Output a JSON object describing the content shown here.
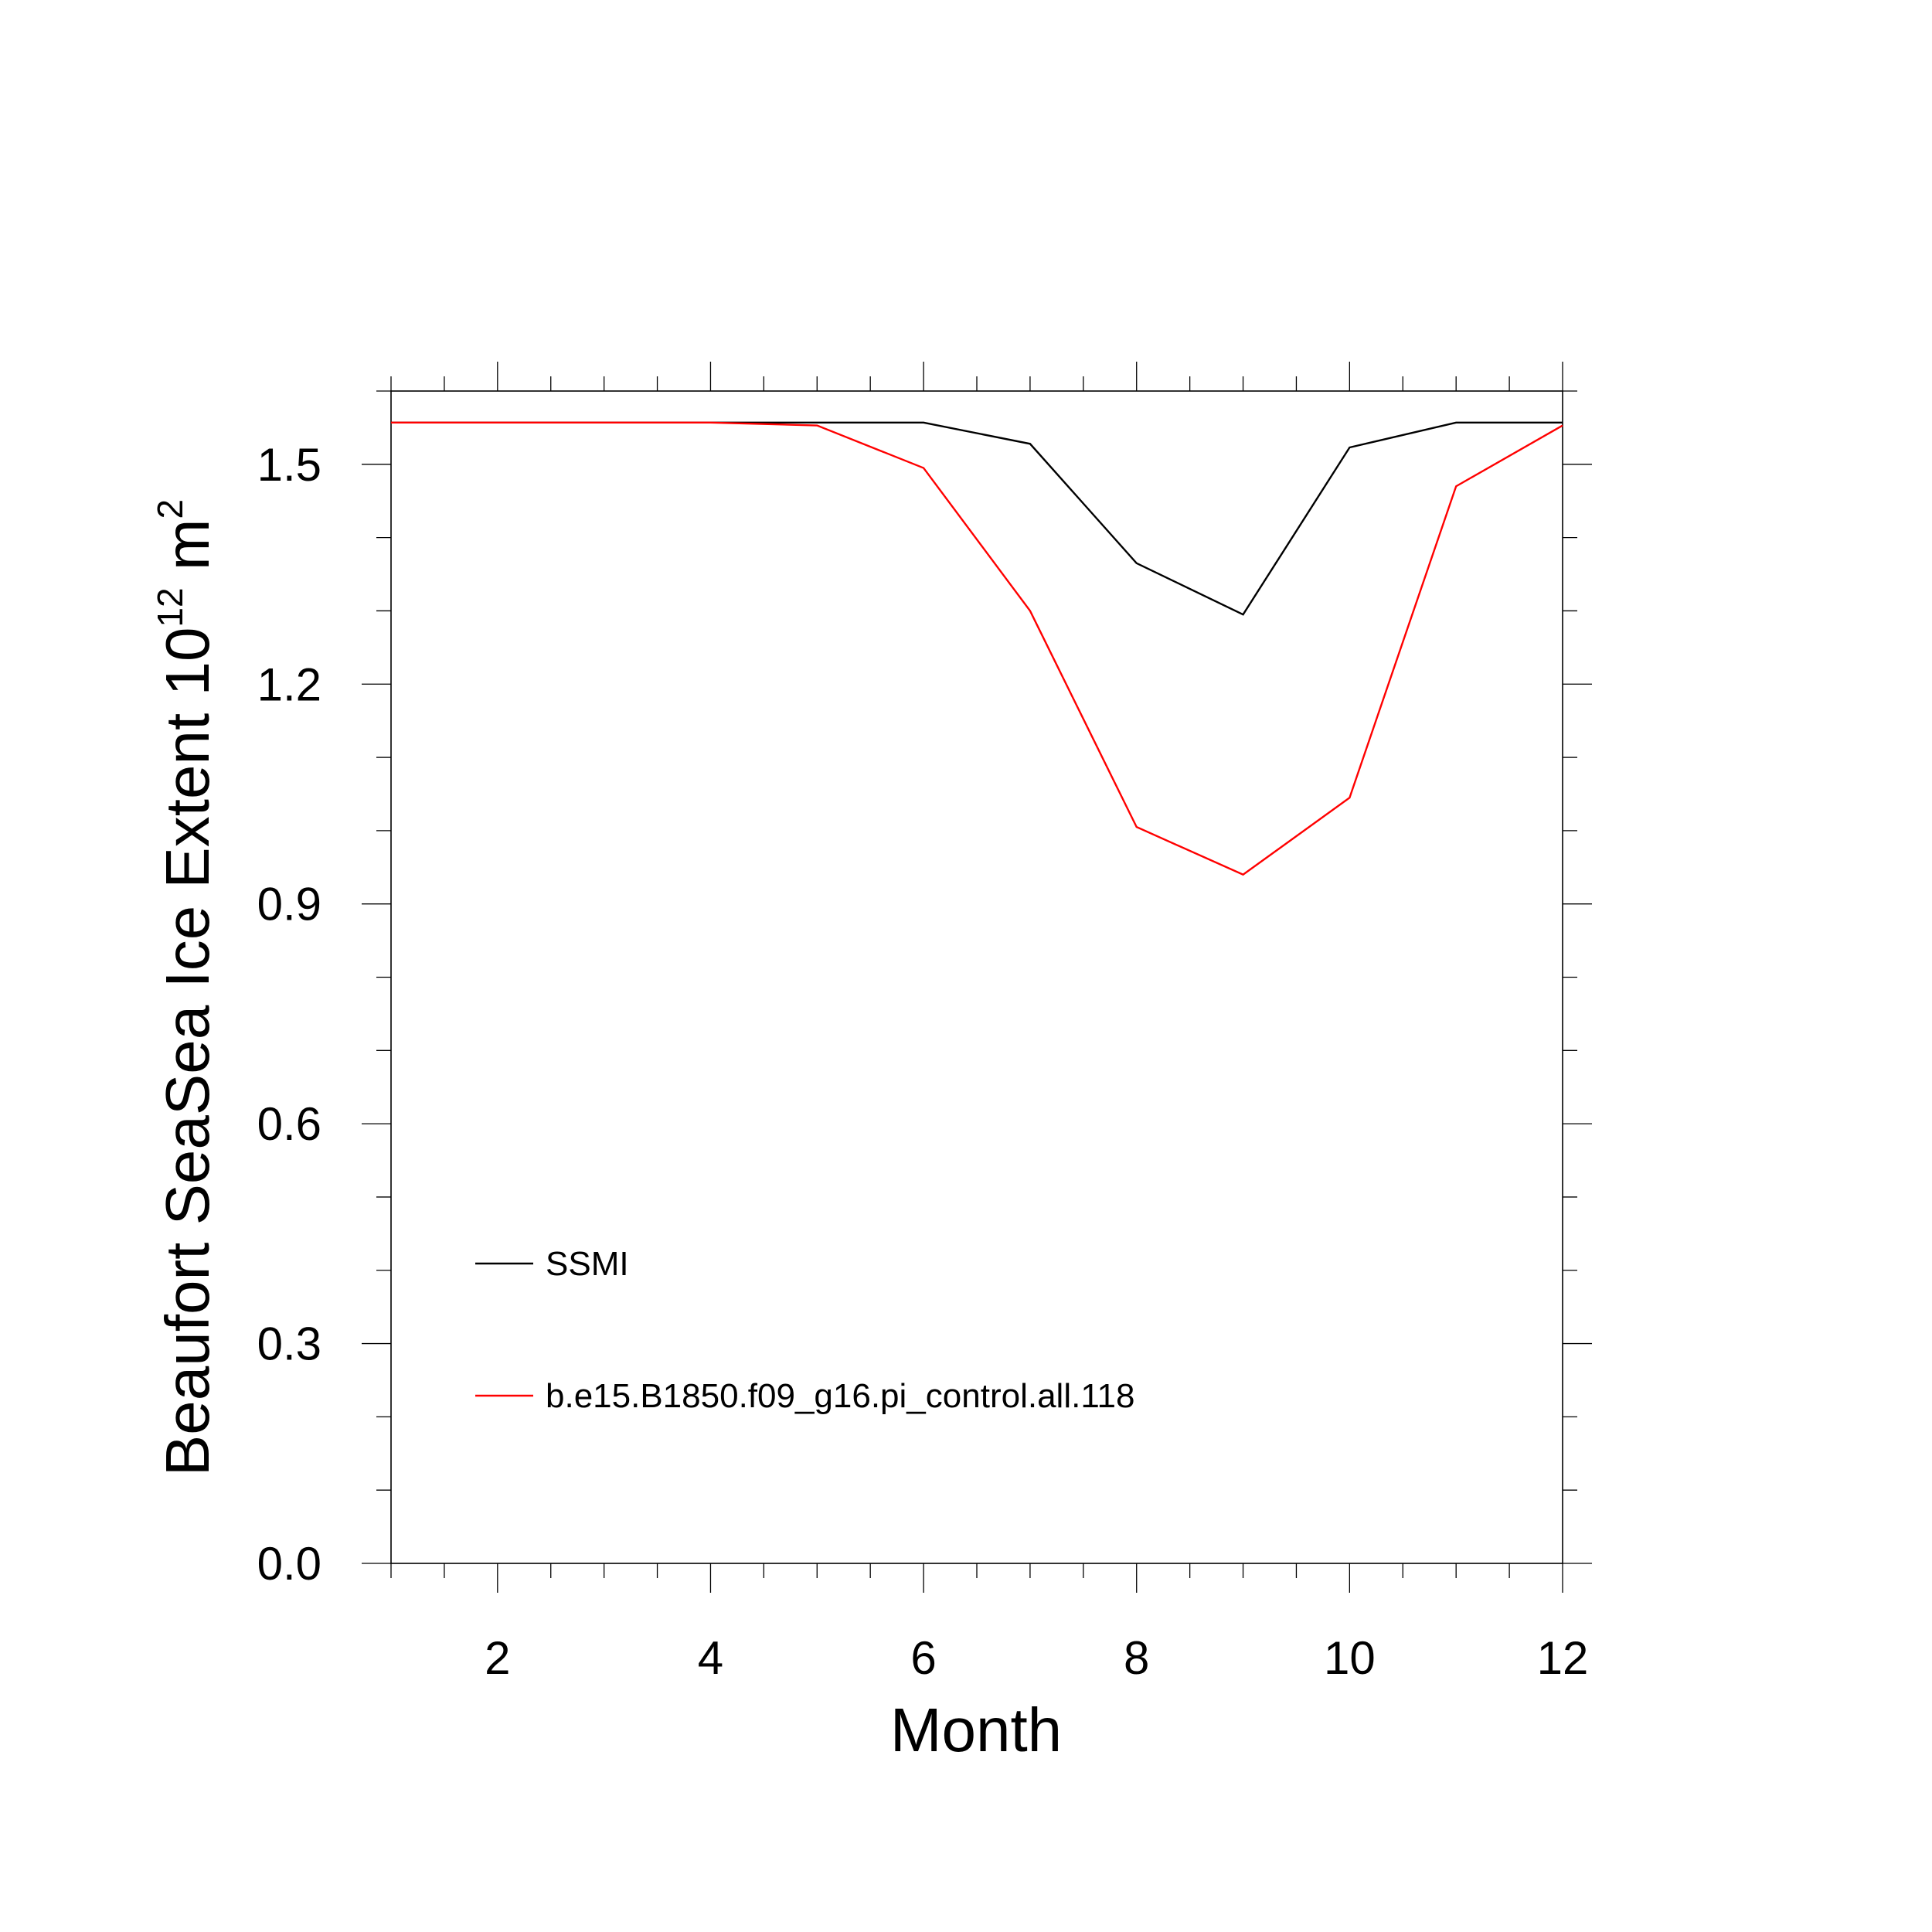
{
  "chart_data": {
    "type": "line",
    "title": "",
    "xlabel": "Month",
    "ylabel": {
      "text": "Beaufort SeaSea Ice Extent 10",
      "exponent": "12",
      "unit": " m",
      "unit_exponent": "2"
    },
    "xlim": [
      1,
      12
    ],
    "ylim": [
      0,
      1.6
    ],
    "x_ticks": [
      2,
      4,
      6,
      8,
      10,
      12
    ],
    "x_tick_labels": [
      "2",
      "4",
      "6",
      "8",
      "10",
      "12"
    ],
    "y_ticks": [
      0,
      0.3,
      0.6,
      0.9,
      1.2,
      1.5
    ],
    "y_tick_labels": [
      "0.0",
      "0.3",
      "0.6",
      "0.9",
      "1.2",
      "1.5"
    ],
    "x": [
      1,
      2,
      3,
      4,
      5,
      6,
      7,
      8,
      9,
      10,
      11,
      12
    ],
    "series": [
      {
        "name": "SSMI",
        "color": "#000000",
        "values": [
          1.557,
          1.557,
          1.557,
          1.557,
          1.557,
          1.557,
          1.528,
          1.365,
          1.295,
          1.523,
          1.557,
          1.557
        ]
      },
      {
        "name": "b.e15.B1850.f09_g16.pi_control.all.118",
        "color": "#ff0000",
        "values": [
          1.557,
          1.557,
          1.557,
          1.557,
          1.553,
          1.495,
          1.3,
          1.005,
          0.94,
          1.045,
          1.47,
          1.553
        ]
      }
    ],
    "legend_position": "lower-left",
    "grid": false
  }
}
